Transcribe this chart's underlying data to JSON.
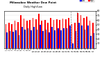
{
  "title1": "Milwaukee Weather Dew Point",
  "title2": "Daily High/Low",
  "bar_color_high": "#ff0000",
  "bar_color_low": "#0000ff",
  "background": "#ffffff",
  "legend_high": "High",
  "legend_low": "Low",
  "ylim": [
    0,
    80
  ],
  "yticks": [
    10,
    20,
    30,
    40,
    50,
    60,
    70,
    80
  ],
  "dashed_lines": [
    21.5,
    23.5
  ],
  "highs": [
    52,
    55,
    52,
    58,
    56,
    70,
    63,
    58,
    60,
    65,
    62,
    73,
    58,
    60,
    55,
    65,
    60,
    62,
    60,
    63,
    62,
    65,
    52,
    55,
    75,
    70,
    65,
    68,
    58,
    55
  ],
  "lows": [
    33,
    36,
    35,
    38,
    28,
    45,
    40,
    42,
    38,
    46,
    40,
    50,
    36,
    40,
    33,
    46,
    38,
    42,
    38,
    42,
    42,
    48,
    10,
    36,
    55,
    48,
    40,
    48,
    26,
    32
  ],
  "xlabels": [
    "1",
    "2",
    "3",
    "4",
    "5",
    "6",
    "7",
    "8",
    "9",
    "10",
    "11",
    "12",
    "13",
    "14",
    "15",
    "16",
    "17",
    "18",
    "19",
    "20",
    "21",
    "22",
    "23",
    "24",
    "25",
    "26",
    "27",
    "28",
    "29",
    "30"
  ]
}
